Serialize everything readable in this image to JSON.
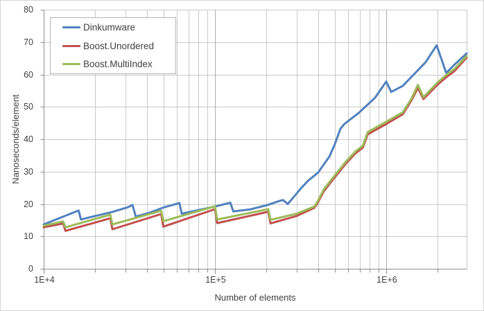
{
  "chart_data": {
    "type": "line",
    "x_axis": {
      "label": "Number of elements",
      "scale": "log",
      "min": 10000,
      "max": 2950000,
      "major_ticks": [
        {
          "value": 10000,
          "label": "1E+4"
        },
        {
          "value": 100000,
          "label": "1E+5"
        },
        {
          "value": 1000000,
          "label": "1E+6"
        }
      ],
      "minor_gridlines_per_decade": [
        2,
        3,
        4,
        5,
        6,
        7,
        8,
        9
      ]
    },
    "y_axis": {
      "label": "Nanoseconds/element",
      "min": 0,
      "max": 80,
      "tick_step": 10,
      "ticks": [
        0,
        10,
        20,
        30,
        40,
        50,
        60,
        70,
        80
      ]
    },
    "legend": {
      "position": "top-left"
    },
    "grid": {
      "minor_color": "#c9c9c9",
      "major_color": "#adadad",
      "axis_color": "#8c8c8c"
    },
    "series": [
      {
        "name": "Dinkumware",
        "color": "#4F81BD",
        "points": [
          [
            10000,
            13.7
          ],
          [
            16000,
            18.0
          ],
          [
            16500,
            15.2
          ],
          [
            20000,
            16.3
          ],
          [
            25000,
            17.5
          ],
          [
            31000,
            19.0
          ],
          [
            33000,
            19.7
          ],
          [
            34500,
            16.1
          ],
          [
            42000,
            17.4
          ],
          [
            50000,
            18.9
          ],
          [
            62000,
            20.3
          ],
          [
            64000,
            17.0
          ],
          [
            80000,
            18.1
          ],
          [
            100000,
            19.2
          ],
          [
            123000,
            20.4
          ],
          [
            128000,
            17.7
          ],
          [
            160000,
            18.3
          ],
          [
            200000,
            19.6
          ],
          [
            240000,
            21.0
          ],
          [
            250000,
            21.2
          ],
          [
            266000,
            20.0
          ],
          [
            290000,
            22.3
          ],
          [
            320000,
            25.0
          ],
          [
            350000,
            27.2
          ],
          [
            400000,
            29.7
          ],
          [
            466000,
            34.7
          ],
          [
            500000,
            38.3
          ],
          [
            540000,
            43.2
          ],
          [
            570000,
            44.7
          ],
          [
            690000,
            48.1
          ],
          [
            860000,
            52.8
          ],
          [
            1000000,
            57.8
          ],
          [
            1070000,
            54.6
          ],
          [
            1250000,
            56.5
          ],
          [
            1450000,
            60.0
          ],
          [
            1700000,
            63.8
          ],
          [
            1970000,
            69.0
          ],
          [
            2240000,
            60.5
          ],
          [
            2500000,
            63.0
          ],
          [
            2950000,
            66.5
          ]
        ]
      },
      {
        "name": "Boost.Unordered",
        "color": "#C0504D",
        "points": [
          [
            10000,
            12.8
          ],
          [
            13000,
            14.0
          ],
          [
            13400,
            11.7
          ],
          [
            24500,
            15.6
          ],
          [
            25200,
            12.2
          ],
          [
            48500,
            16.9
          ],
          [
            50000,
            13.0
          ],
          [
            100000,
            18.4
          ],
          [
            103000,
            14.1
          ],
          [
            205000,
            17.6
          ],
          [
            211000,
            14.0
          ],
          [
            300000,
            16.3
          ],
          [
            380000,
            18.8
          ],
          [
            395000,
            20.0
          ],
          [
            433000,
            24.0
          ],
          [
            490000,
            27.6
          ],
          [
            580000,
            32.4
          ],
          [
            660000,
            35.6
          ],
          [
            730000,
            37.4
          ],
          [
            780000,
            41.5
          ],
          [
            970000,
            44.3
          ],
          [
            1250000,
            47.7
          ],
          [
            1400000,
            51.9
          ],
          [
            1530000,
            55.8
          ],
          [
            1650000,
            52.4
          ],
          [
            2000000,
            56.9
          ],
          [
            2250000,
            59.2
          ],
          [
            2500000,
            61.0
          ],
          [
            2950000,
            65.2
          ]
        ]
      },
      {
        "name": "Boost.MultiIndex",
        "color": "#9BBB59",
        "points": [
          [
            10000,
            13.3
          ],
          [
            13000,
            14.6
          ],
          [
            13400,
            12.8
          ],
          [
            24500,
            16.7
          ],
          [
            25200,
            13.7
          ],
          [
            48500,
            17.9
          ],
          [
            50000,
            14.7
          ],
          [
            100000,
            19.3
          ],
          [
            103000,
            15.2
          ],
          [
            205000,
            18.4
          ],
          [
            211000,
            15.1
          ],
          [
            300000,
            17.0
          ],
          [
            380000,
            19.2
          ],
          [
            395000,
            20.5
          ],
          [
            433000,
            24.6
          ],
          [
            490000,
            28.2
          ],
          [
            580000,
            33.0
          ],
          [
            660000,
            36.2
          ],
          [
            730000,
            38.0
          ],
          [
            780000,
            42.2
          ],
          [
            970000,
            45.0
          ],
          [
            1250000,
            48.3
          ],
          [
            1400000,
            52.4
          ],
          [
            1530000,
            56.8
          ],
          [
            1650000,
            53.0
          ],
          [
            2000000,
            57.6
          ],
          [
            2250000,
            59.9
          ],
          [
            2500000,
            61.7
          ],
          [
            2950000,
            65.7
          ]
        ]
      }
    ]
  }
}
